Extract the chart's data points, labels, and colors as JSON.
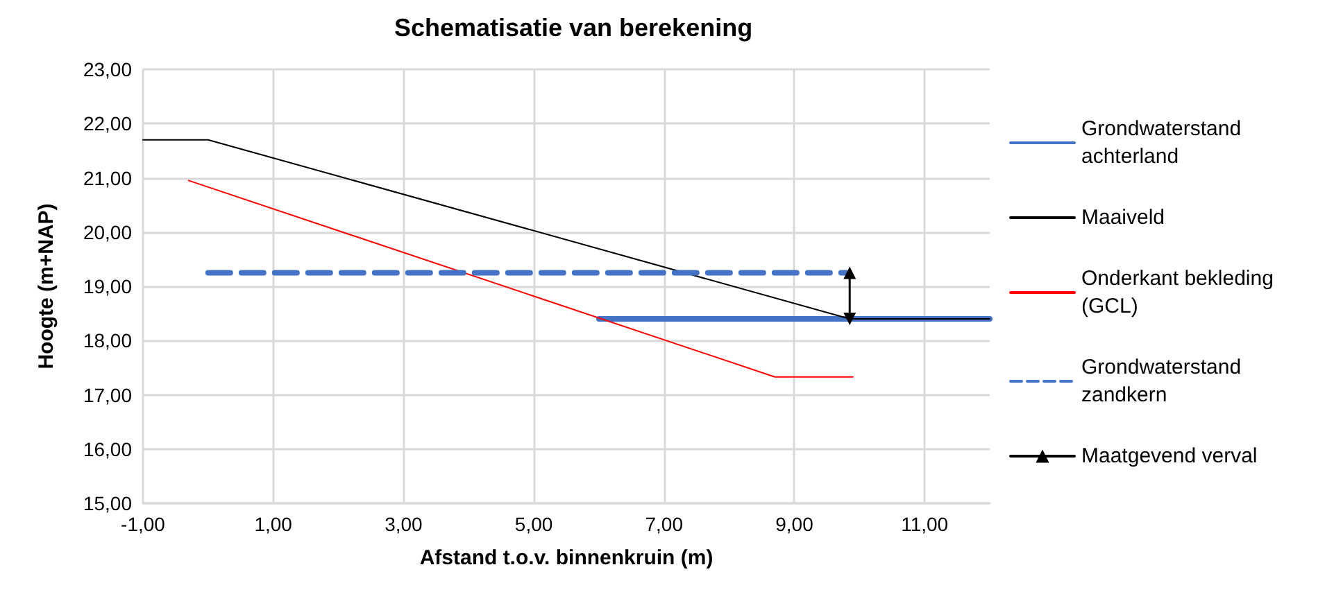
{
  "chart_data": {
    "type": "line",
    "title": "Schematisatie van berekening",
    "xlabel": "Afstand t.o.v. binnenkruin (m)",
    "ylabel": "Hoogte (m+NAP)",
    "xlim": [
      -1,
      12
    ],
    "xticks": [
      {
        "value": -1,
        "label": "-1,00"
      },
      {
        "value": 1,
        "label": "1,00"
      },
      {
        "value": 3,
        "label": "3,00"
      },
      {
        "value": 5,
        "label": "5,00"
      },
      {
        "value": 7,
        "label": "7,00"
      },
      {
        "value": 9,
        "label": "9,00"
      },
      {
        "value": 11,
        "label": "11,00"
      }
    ],
    "ylim": [
      15,
      23
    ],
    "yticks": [
      {
        "value": 15,
        "label": "15,00"
      },
      {
        "value": 16,
        "label": "16,00"
      },
      {
        "value": 17,
        "label": "17,00"
      },
      {
        "value": 18,
        "label": "18,00"
      },
      {
        "value": 19,
        "label": "19,00"
      },
      {
        "value": 20,
        "label": "20,00"
      },
      {
        "value": 21,
        "label": "21,00"
      },
      {
        "value": 22,
        "label": "22,00"
      },
      {
        "value": 23,
        "label": "23,00"
      }
    ],
    "grid": true,
    "legend": "right",
    "marker": "none",
    "series": [
      {
        "name": "Grondwaterstand achterland",
        "color": "#4472c4",
        "x": [
          6.0,
          12
        ],
        "values": [
          18.4,
          18.4
        ]
      },
      {
        "name": "Maaiveld",
        "color": "#000000",
        "x": [
          -1,
          0,
          9.85,
          12
        ],
        "values": [
          21.7,
          21.7,
          18.4,
          18.4
        ]
      },
      {
        "name": "Onderkant bekleding (GCL)",
        "color": "#ff0000",
        "x": [
          -0.3,
          8.7,
          9.9
        ],
        "values": [
          20.95,
          17.33,
          17.33
        ]
      },
      {
        "name": "Grondwaterstand zandkern",
        "color": "#4472c4",
        "line_style": "dashed",
        "x": [
          0,
          9.8
        ],
        "values": [
          19.25,
          19.25
        ]
      },
      {
        "name": "Maatgevend verval",
        "color": "#000000",
        "marker": "triangle",
        "x": [
          9.85,
          9.85
        ],
        "values": [
          19.25,
          18.4
        ]
      }
    ]
  }
}
